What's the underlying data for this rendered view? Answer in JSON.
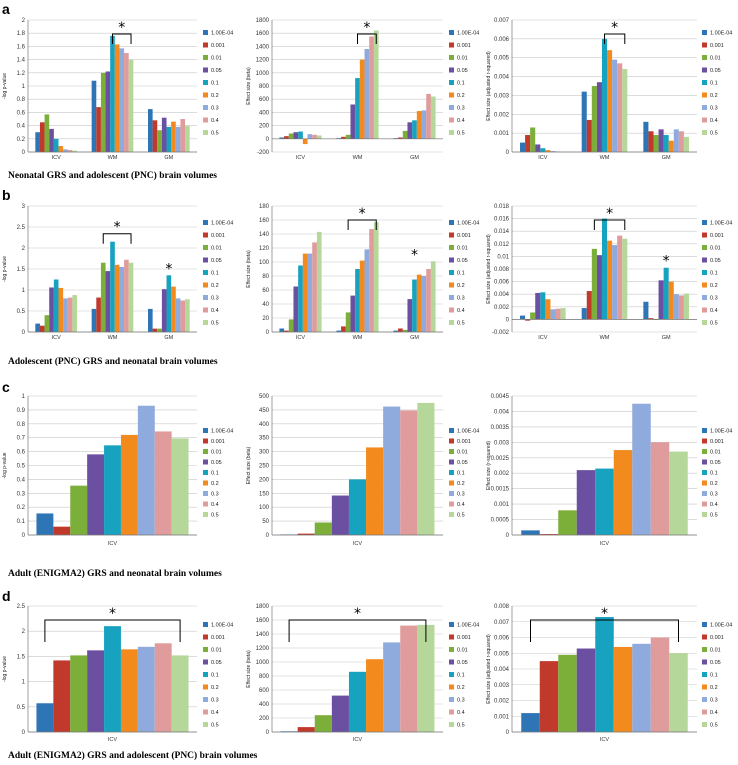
{
  "rows": [
    {
      "letter": "a",
      "caption": "Neonatal GRS and adolescent (PNC) brain volumes"
    },
    {
      "letter": "b",
      "caption": "Adolescent (PNC) GRS and neonatal brain volumes"
    },
    {
      "letter": "c",
      "caption": "Adult (ENIGMA2) GRS and neonatal brain volumes"
    },
    {
      "letter": "d",
      "caption": "Adult (ENIGMA2) GRS and adolescent (PNC) brain volumes"
    }
  ],
  "legend_labels": [
    "1.00E-04",
    "0.001",
    "0.01",
    "0.05",
    "0.1",
    "0.2",
    "0.3",
    "0.4",
    "0.5"
  ],
  "colors": [
    "#2e75b6",
    "#c0392b",
    "#7cae3a",
    "#6b4fa0",
    "#17a2c0",
    "#f28a1e",
    "#8faadc",
    "#e09c9c",
    "#b5d79a"
  ],
  "chart_data": [
    {
      "id": "a1",
      "type": "bar",
      "ylabel": "-log p-value",
      "categories": [
        "ICV",
        "WM",
        "GM"
      ],
      "ylim": [
        0,
        2
      ],
      "yticks": [
        "0",
        "0.2",
        "0.4",
        "0.6",
        "0.8",
        "1",
        "1.2",
        "1.4",
        "1.6",
        "1.8",
        "2"
      ],
      "series": [
        [
          0.3,
          1.08,
          0.65
        ],
        [
          0.45,
          0.68,
          0.48
        ],
        [
          0.57,
          1.2,
          0.33
        ],
        [
          0.35,
          1.22,
          0.52
        ],
        [
          0.2,
          1.76,
          0.38
        ],
        [
          0.09,
          1.63,
          0.46
        ],
        [
          0.04,
          1.57,
          0.38
        ],
        [
          0.03,
          1.5,
          0.5
        ],
        [
          0.02,
          1.4,
          0.4
        ]
      ],
      "sig": {
        "from": 4,
        "to": 8,
        "label": "*"
      }
    },
    {
      "id": "a2",
      "type": "bar",
      "ylabel": "Effect size (beta)",
      "categories": [
        "ICV",
        "WM",
        "GM"
      ],
      "ylim": [
        -200,
        1800
      ],
      "yticks": [
        "-200",
        "0",
        "200",
        "400",
        "600",
        "800",
        "1000",
        "1200",
        "1400",
        "1600",
        "1800"
      ],
      "series": [
        [
          20,
          10,
          10
        ],
        [
          40,
          30,
          20
        ],
        [
          80,
          60,
          120
        ],
        [
          100,
          520,
          250
        ],
        [
          110,
          920,
          280
        ],
        [
          -80,
          1200,
          420
        ],
        [
          70,
          1360,
          430
        ],
        [
          60,
          1550,
          680
        ],
        [
          50,
          1640,
          640
        ]
      ],
      "sig": {
        "from": 4,
        "to": 8,
        "label": "*"
      }
    },
    {
      "id": "a3",
      "type": "bar",
      "ylabel": "Effect size (adjusted r-squared)",
      "categories": [
        "ICV",
        "WM",
        "GM"
      ],
      "ylim": [
        0,
        0.007
      ],
      "yticks": [
        "0",
        "0.001",
        "0.002",
        "0.003",
        "0.004",
        "0.005",
        "0.006",
        "0.007"
      ],
      "series": [
        [
          0.0005,
          0.0032,
          0.0016
        ],
        [
          0.0009,
          0.0017,
          0.0011
        ],
        [
          0.0013,
          0.0035,
          0.0009
        ],
        [
          0.0004,
          0.0037,
          0.0012
        ],
        [
          0.0002,
          0.006,
          0.0009
        ],
        [
          0.0001,
          0.0054,
          0.0006
        ],
        [
          5e-05,
          0.0049,
          0.0012
        ],
        [
          3e-05,
          0.0047,
          0.0011
        ],
        [
          2e-05,
          0.0044,
          0.0008
        ]
      ],
      "sig": {
        "from": 4,
        "to": 8,
        "label": "*"
      }
    },
    {
      "id": "b1",
      "type": "bar",
      "ylabel": "-log p-value",
      "categories": [
        "ICV",
        "WM",
        "GM"
      ],
      "ylim": [
        0,
        3
      ],
      "yticks": [
        "0",
        "0.5",
        "1",
        "1.5",
        "2",
        "2.5",
        "3"
      ],
      "series": [
        [
          0.2,
          0.55,
          0.55
        ],
        [
          0.15,
          0.82,
          0.08
        ],
        [
          0.4,
          1.65,
          0.08
        ],
        [
          1.06,
          1.45,
          1.02
        ],
        [
          1.25,
          2.15,
          1.35
        ],
        [
          1.05,
          1.6,
          1.08
        ],
        [
          0.8,
          1.55,
          0.8
        ],
        [
          0.82,
          1.72,
          0.75
        ],
        [
          0.88,
          1.65,
          0.78
        ]
      ],
      "sig": {
        "from": 2,
        "to": 8,
        "label": "*"
      },
      "gm_star": "*"
    },
    {
      "id": "b2",
      "type": "bar",
      "ylabel": "Effect size (beta)",
      "categories": [
        "ICV",
        "WM",
        "GM"
      ],
      "ylim": [
        0,
        180
      ],
      "yticks": [
        "0",
        "20",
        "40",
        "60",
        "80",
        "100",
        "120",
        "140",
        "160",
        "180"
      ],
      "series": [
        [
          5,
          2,
          2
        ],
        [
          2,
          8,
          5
        ],
        [
          18,
          28,
          3
        ],
        [
          65,
          52,
          47
        ],
        [
          95,
          90,
          75
        ],
        [
          112,
          102,
          82
        ],
        [
          112,
          118,
          80
        ],
        [
          128,
          147,
          90
        ],
        [
          143,
          157,
          101
        ]
      ],
      "sig": {
        "from": 2,
        "to": 8,
        "label": "*"
      },
      "gm_star": "*"
    },
    {
      "id": "b3",
      "type": "bar",
      "ylabel": "Effect size (adjusted r-squared)",
      "categories": [
        "ICV",
        "WM",
        "GM"
      ],
      "ylim": [
        -0.002,
        0.018
      ],
      "yticks": [
        "-0.002",
        "0",
        "0.002",
        "0.004",
        "0.006",
        "0.008",
        "0.01",
        "0.012",
        "0.014",
        "0.016",
        "0.018"
      ],
      "series": [
        [
          0.0006,
          0.0018,
          0.0028
        ],
        [
          -0.0002,
          0.0045,
          0.0002
        ],
        [
          0.0011,
          0.0112,
          -0.0001
        ],
        [
          0.0042,
          0.0102,
          0.0062
        ],
        [
          0.0043,
          0.016,
          0.0082
        ],
        [
          0.0032,
          0.0125,
          0.006
        ],
        [
          0.0016,
          0.0118,
          0.004
        ],
        [
          0.0017,
          0.0133,
          0.0038
        ],
        [
          0.0018,
          0.0128,
          0.0041
        ]
      ],
      "sig": {
        "from": 2,
        "to": 8,
        "label": "*"
      },
      "gm_star": "*"
    },
    {
      "id": "c1",
      "type": "bar",
      "ylabel": "-log p-value",
      "categories": [
        "ICV"
      ],
      "ylim": [
        0,
        1
      ],
      "yticks": [
        "0",
        "0.1",
        "0.2",
        "0.3",
        "0.4",
        "0.5",
        "0.6",
        "0.7",
        "0.8",
        "0.9",
        "1"
      ],
      "series": [
        [
          0.155
        ],
        [
          0.06
        ],
        [
          0.355
        ],
        [
          0.58
        ],
        [
          0.645
        ],
        [
          0.72
        ],
        [
          0.93
        ],
        [
          0.745
        ],
        [
          0.695
        ]
      ]
    },
    {
      "id": "c2",
      "type": "bar",
      "ylabel": "Effect size (beta)",
      "categories": [
        "ICV"
      ],
      "ylim": [
        0,
        500
      ],
      "yticks": [
        "0",
        "50",
        "100",
        "150",
        "200",
        "250",
        "300",
        "350",
        "400",
        "450",
        "500"
      ],
      "series": [
        [
          2
        ],
        [
          5
        ],
        [
          45
        ],
        [
          142
        ],
        [
          200
        ],
        [
          315
        ],
        [
          462
        ],
        [
          448
        ],
        [
          475
        ]
      ]
    },
    {
      "id": "c3",
      "type": "bar",
      "ylabel": "Effect size (r-squared)",
      "categories": [
        "ICV"
      ],
      "ylim": [
        0,
        0.0045
      ],
      "yticks": [
        "0",
        "0.0005",
        "0.001",
        "0.0015",
        "0.002",
        "0.0025",
        "0.003",
        "0.0035",
        "0.004",
        "0.0045"
      ],
      "series": [
        [
          0.00015
        ],
        [
          3e-05
        ],
        [
          0.0008
        ],
        [
          0.0021
        ],
        [
          0.00215
        ],
        [
          0.00275
        ],
        [
          0.00425
        ],
        [
          0.003
        ],
        [
          0.0027
        ]
      ]
    },
    {
      "id": "d1",
      "type": "bar",
      "ylabel": "-log p-value",
      "categories": [
        "ICV"
      ],
      "ylim": [
        0,
        2.5
      ],
      "yticks": [
        "0",
        "0.5",
        "1",
        "1.5",
        "2",
        "2.5"
      ],
      "series": [
        [
          0.57
        ],
        [
          1.42
        ],
        [
          1.52
        ],
        [
          1.62
        ],
        [
          2.1
        ],
        [
          1.64
        ],
        [
          1.69
        ],
        [
          1.76
        ],
        [
          1.52
        ]
      ],
      "sig": {
        "from": 0,
        "to": 8,
        "label": "*"
      }
    },
    {
      "id": "d2",
      "type": "bar",
      "ylabel": "Effect size (beta)",
      "categories": [
        "ICV"
      ],
      "ylim": [
        0,
        1800
      ],
      "yticks": [
        "0",
        "200",
        "400",
        "600",
        "800",
        "1000",
        "1200",
        "1400",
        "1600",
        "1800"
      ],
      "series": [
        [
          10
        ],
        [
          70
        ],
        [
          240
        ],
        [
          520
        ],
        [
          860
        ],
        [
          1040
        ],
        [
          1280
        ],
        [
          1520
        ],
        [
          1530
        ]
      ],
      "sig": {
        "from": 0,
        "to": 8,
        "label": "*"
      }
    },
    {
      "id": "d3",
      "type": "bar",
      "ylabel": "Effect size (adjusted r-squared)",
      "categories": [
        "ICV"
      ],
      "ylim": [
        0,
        0.008
      ],
      "yticks": [
        "0",
        "0.001",
        "0.002",
        "0.003",
        "0.004",
        "0.005",
        "0.006",
        "0.007",
        "0.008"
      ],
      "series": [
        [
          0.0012
        ],
        [
          0.0045
        ],
        [
          0.0049
        ],
        [
          0.0053
        ],
        [
          0.0073
        ],
        [
          0.0054
        ],
        [
          0.0056
        ],
        [
          0.006
        ],
        [
          0.005
        ]
      ],
      "sig": {
        "from": 0,
        "to": 8,
        "label": "*"
      }
    }
  ]
}
